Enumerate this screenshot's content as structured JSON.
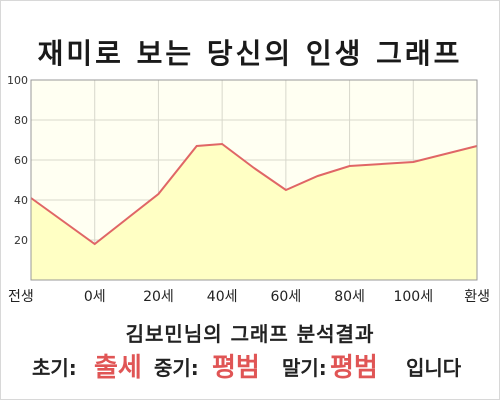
{
  "page": {
    "title": "재미로 보는 당신의 인생 그래프",
    "analysis_title": "김보민님의 그래프 분석결과",
    "early_label": "초기:",
    "early_value": "출세",
    "mid_label": "중기:",
    "mid_value": "평범",
    "late_label": "말기:",
    "late_value": "평범",
    "suffix": "입니다"
  },
  "chart_data": {
    "type": "area",
    "x_labels": [
      "전생",
      "0세",
      "20세",
      "40세",
      "60세",
      "80세",
      "100세",
      "환생"
    ],
    "x": [
      -20,
      0,
      20,
      40,
      60,
      80,
      100,
      120
    ],
    "points": [
      {
        "x": -20,
        "y": 41
      },
      {
        "x": 0,
        "y": 18
      },
      {
        "x": 20,
        "y": 43
      },
      {
        "x": 32,
        "y": 67
      },
      {
        "x": 40,
        "y": 68
      },
      {
        "x": 50,
        "y": 56
      },
      {
        "x": 60,
        "y": 45
      },
      {
        "x": 70,
        "y": 52
      },
      {
        "x": 80,
        "y": 57
      },
      {
        "x": 100,
        "y": 59
      },
      {
        "x": 120,
        "y": 67
      }
    ],
    "ylim": [
      0,
      100
    ],
    "y_ticks": [
      20,
      40,
      60,
      80,
      100
    ],
    "xlim": [
      -20,
      120
    ],
    "grid": true,
    "colors": {
      "line": "#e06666",
      "fill": "#ffffc4",
      "plot_bg": "#fffff2",
      "grid": "#d8d8cc",
      "highlight": "#e05555"
    }
  }
}
